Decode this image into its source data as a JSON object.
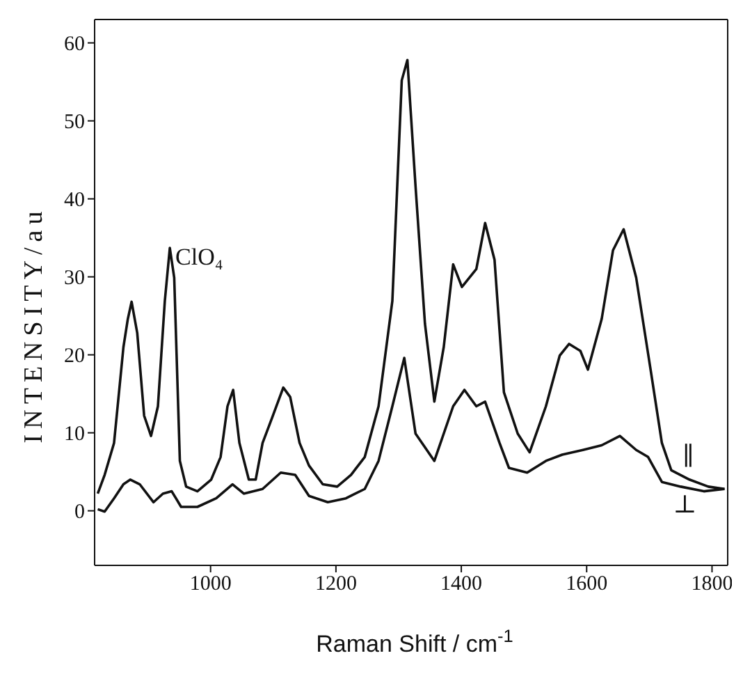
{
  "chart_data": {
    "type": "line",
    "xlabel": "Raman Shift / cm$^{-1}$",
    "ylabel": "INTENSITY/au",
    "xlim": [
      815,
      1825
    ],
    "xticks": [
      1000,
      1200,
      1400,
      1600,
      1800
    ],
    "ylim": [
      -7,
      63
    ],
    "yticks": [
      0,
      10,
      20,
      30,
      40,
      50,
      60
    ],
    "marker": "none",
    "line_style": "solid",
    "annotations": [
      {
        "text": "ClO₄",
        "x": 935,
        "y": 33.7
      }
    ],
    "series": [
      {
        "name": "∥",
        "color": "#111111",
        "x": [
          820,
          831,
          846,
          861,
          868,
          874,
          883,
          894,
          905,
          916,
          927,
          935,
          942,
          951,
          961,
          979,
          1001,
          1016,
          1027,
          1036,
          1046,
          1061,
          1072,
          1083,
          1098,
          1116,
          1127,
          1142,
          1157,
          1179,
          1202,
          1224,
          1246,
          1268,
          1290,
          1305,
          1314,
          1327,
          1342,
          1357,
          1372,
          1387,
          1401,
          1424,
          1438,
          1453,
          1468,
          1490,
          1509,
          1535,
          1557,
          1572,
          1590,
          1602,
          1624,
          1642,
          1659,
          1679,
          1702,
          1720,
          1735,
          1764,
          1794,
          1820
        ],
        "values": [
          2.2,
          4.6,
          8.7,
          21,
          24.6,
          26.8,
          22.8,
          12.2,
          9.6,
          13.4,
          26.9,
          33.7,
          29.9,
          6.4,
          3.1,
          2.5,
          4,
          6.9,
          13.4,
          15.5,
          8.7,
          4,
          4,
          8.7,
          11.9,
          15.8,
          14.6,
          8.7,
          5.8,
          3.4,
          3.1,
          4.6,
          6.9,
          13.4,
          26.9,
          55.2,
          57.8,
          41.6,
          24,
          14,
          21,
          31.6,
          28.7,
          31,
          36.9,
          32.2,
          15.2,
          9.9,
          7.5,
          13.4,
          19.9,
          21.4,
          20.5,
          18.1,
          24.6,
          33.4,
          36.1,
          29.9,
          18.1,
          8.7,
          5.2,
          4,
          3.1,
          2.8
        ]
      },
      {
        "name": "⊥",
        "color": "#111111",
        "x": [
          820,
          831,
          846,
          861,
          872,
          887,
          909,
          924,
          938,
          953,
          979,
          1009,
          1035,
          1053,
          1083,
          1112,
          1135,
          1157,
          1187,
          1216,
          1246,
          1268,
          1290,
          1309,
          1327,
          1357,
          1387,
          1405,
          1424,
          1438,
          1461,
          1476,
          1505,
          1535,
          1561,
          1594,
          1624,
          1653,
          1679,
          1698,
          1720,
          1750,
          1787,
          1820
        ],
        "values": [
          0.2,
          -0.1,
          1.6,
          3.4,
          4,
          3.4,
          1.1,
          2.2,
          2.5,
          0.5,
          0.5,
          1.6,
          3.4,
          2.2,
          2.8,
          4.9,
          4.6,
          1.9,
          1.1,
          1.6,
          2.8,
          6.4,
          13.4,
          19.6,
          9.9,
          6.4,
          13.4,
          15.5,
          13.4,
          14,
          8.7,
          5.5,
          4.9,
          6.4,
          7.2,
          7.8,
          8.4,
          9.6,
          7.8,
          6.9,
          3.7,
          3.1,
          2.5,
          2.8
        ]
      }
    ]
  }
}
